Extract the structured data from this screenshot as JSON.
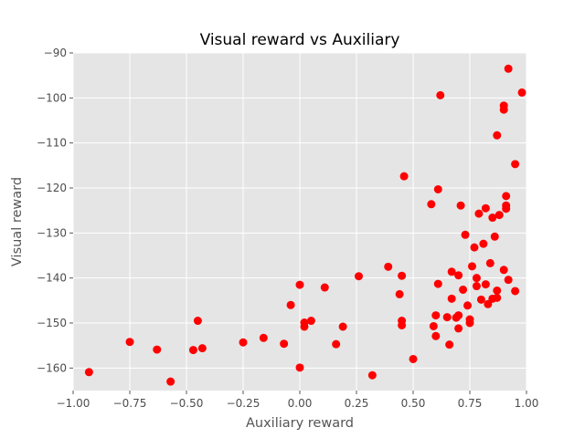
{
  "chart_data": {
    "type": "scatter",
    "title": "Visual reward vs Auxiliary",
    "xlabel": "Auxiliary reward",
    "ylabel": "Visual reward",
    "xlim": [
      -1.0,
      1.0
    ],
    "ylim": [
      -165,
      -90
    ],
    "x_ticks": [
      -1.0,
      -0.75,
      -0.5,
      -0.25,
      0.0,
      0.25,
      0.5,
      0.75,
      1.0
    ],
    "x_tick_labels": [
      "−1.00",
      "−0.75",
      "−0.50",
      "−0.25",
      "0.00",
      "0.25",
      "0.50",
      "0.75",
      "1.00"
    ],
    "y_ticks": [
      -160,
      -150,
      -140,
      -130,
      -120,
      -110,
      -100,
      -90
    ],
    "y_tick_labels": [
      "−160",
      "−150",
      "−140",
      "−130",
      "−120",
      "−110",
      "−100",
      "−90"
    ],
    "grid": true,
    "style": "ggplot",
    "colors": {
      "marker": "#ff0000",
      "plot_background": "#e5e5e5",
      "grid": "#ffffff"
    },
    "points": [
      [
        -0.93,
        -160.9
      ],
      [
        -0.75,
        -154.2
      ],
      [
        -0.63,
        -155.9
      ],
      [
        -0.57,
        -163.0
      ],
      [
        -0.47,
        -156.0
      ],
      [
        -0.45,
        -149.5
      ],
      [
        -0.43,
        -155.6
      ],
      [
        -0.25,
        -154.3
      ],
      [
        -0.16,
        -153.3
      ],
      [
        -0.07,
        -154.6
      ],
      [
        -0.04,
        -146.0
      ],
      [
        0.0,
        -141.5
      ],
      [
        0.0,
        -159.9
      ],
      [
        0.02,
        -149.9
      ],
      [
        0.02,
        -150.8
      ],
      [
        0.05,
        -149.5
      ],
      [
        0.11,
        -142.1
      ],
      [
        0.16,
        -154.7
      ],
      [
        0.19,
        -150.8
      ],
      [
        0.26,
        -139.6
      ],
      [
        0.32,
        -161.6
      ],
      [
        0.39,
        -137.5
      ],
      [
        0.44,
        -143.6
      ],
      [
        0.45,
        -139.5
      ],
      [
        0.45,
        -150.5
      ],
      [
        0.45,
        -149.5
      ],
      [
        0.46,
        -117.4
      ],
      [
        0.5,
        -158.0
      ],
      [
        0.58,
        -123.6
      ],
      [
        0.59,
        -150.7
      ],
      [
        0.6,
        -148.3
      ],
      [
        0.6,
        -152.9
      ],
      [
        0.61,
        -141.3
      ],
      [
        0.61,
        -120.3
      ],
      [
        0.62,
        -99.4
      ],
      [
        0.65,
        -148.7
      ],
      [
        0.66,
        -154.8
      ],
      [
        0.67,
        -144.6
      ],
      [
        0.67,
        -138.6
      ],
      [
        0.69,
        -148.8
      ],
      [
        0.7,
        -148.3
      ],
      [
        0.7,
        -139.4
      ],
      [
        0.7,
        -151.2
      ],
      [
        0.71,
        -123.9
      ],
      [
        0.72,
        -142.6
      ],
      [
        0.73,
        -130.4
      ],
      [
        0.74,
        -146.1
      ],
      [
        0.75,
        -150.0
      ],
      [
        0.75,
        -149.2
      ],
      [
        0.76,
        -137.4
      ],
      [
        0.77,
        -133.2
      ],
      [
        0.78,
        -140.0
      ],
      [
        0.78,
        -141.8
      ],
      [
        0.79,
        -125.7
      ],
      [
        0.8,
        -144.8
      ],
      [
        0.81,
        -132.4
      ],
      [
        0.82,
        -141.4
      ],
      [
        0.82,
        -124.5
      ],
      [
        0.83,
        -145.8
      ],
      [
        0.84,
        -136.7
      ],
      [
        0.85,
        -144.6
      ],
      [
        0.85,
        -126.6
      ],
      [
        0.86,
        -130.8
      ],
      [
        0.87,
        -142.8
      ],
      [
        0.87,
        -144.4
      ],
      [
        0.87,
        -108.3
      ],
      [
        0.88,
        -126.0
      ],
      [
        0.9,
        -138.2
      ],
      [
        0.9,
        -101.7
      ],
      [
        0.9,
        -102.6
      ],
      [
        0.91,
        -121.8
      ],
      [
        0.91,
        -123.9
      ],
      [
        0.91,
        -124.6
      ],
      [
        0.92,
        -140.4
      ],
      [
        0.92,
        -93.5
      ],
      [
        0.95,
        -114.7
      ],
      [
        0.95,
        -142.9
      ],
      [
        0.98,
        -98.8
      ]
    ]
  }
}
